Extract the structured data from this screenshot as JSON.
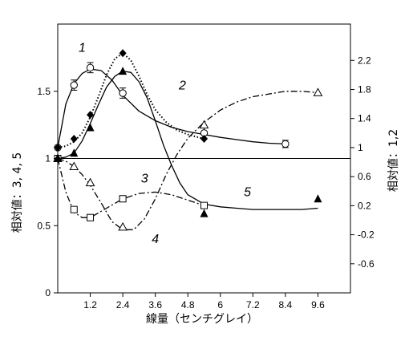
{
  "chart_data": {
    "type": "line",
    "title": "",
    "xlabel": "線量（センチグレイ）",
    "ylabel_left": "相対値：3, 4, 5",
    "ylabel_right": "相対値：1,2",
    "xlim": [
      0,
      10.8
    ],
    "ylim_left": [
      0,
      2
    ],
    "ylim_right": [
      -1,
      2.7
    ],
    "x_ticks": [
      1.2,
      2.4,
      3.6,
      4.8,
      6,
      7.2,
      8.4,
      9.6
    ],
    "x_tick_labels": [
      "1.2",
      "2.4",
      "3.6",
      "4.8",
      "6",
      "7.2",
      "8.4",
      "9.6"
    ],
    "left_ticks": [
      0,
      0.5,
      1,
      1.5
    ],
    "left_tick_labels": [
      "0",
      "0.5",
      "1",
      "1.5"
    ],
    "right_ticks": [
      -0.6,
      -0.2,
      0.2,
      0.6,
      1,
      1.4,
      1.8,
      2.2
    ],
    "right_tick_labels": [
      "-0.6",
      "-0.2",
      "0.2",
      "0.6",
      "1",
      "1.4",
      "1.8",
      "2.2"
    ],
    "reference_line_left_value": 1,
    "grid": false,
    "legend": "none",
    "series": [
      {
        "label": "1",
        "axis": "right",
        "marker": "circle",
        "line": "solid",
        "x": [
          0,
          0.6,
          1.2,
          2.4,
          5.4,
          8.4
        ],
        "y": [
          1.0,
          1.86,
          2.1,
          1.75,
          1.2,
          1.05
        ],
        "err": [
          0,
          0.07,
          0.07,
          0.07,
          0.07,
          0.05
        ],
        "curve_x": [
          0,
          0.3,
          0.6,
          0.9,
          1.2,
          1.6,
          2.0,
          2.4,
          3.0,
          3.6,
          4.2,
          4.8,
          5.4,
          6.0,
          6.6,
          7.2,
          7.8,
          8.4
        ],
        "curve_y": [
          1.0,
          1.6,
          1.88,
          2.02,
          2.08,
          2.06,
          1.93,
          1.72,
          1.5,
          1.37,
          1.28,
          1.22,
          1.18,
          1.14,
          1.11,
          1.08,
          1.06,
          1.05
        ]
      },
      {
        "label": "2",
        "axis": "right",
        "marker": "diamond",
        "line": "dotted",
        "x": [
          0,
          0.6,
          1.2,
          2.4,
          5.4
        ],
        "y": [
          1.0,
          1.12,
          1.45,
          2.3,
          1.12
        ],
        "err": [
          0,
          0,
          0,
          0,
          0
        ],
        "curve_x": [
          0,
          0.3,
          0.6,
          0.9,
          1.2,
          1.5,
          1.8,
          2.1,
          2.4,
          2.7,
          3.0,
          3.3,
          3.6,
          4.0,
          4.4,
          4.8,
          5.4
        ],
        "curve_y": [
          1.0,
          1.02,
          1.08,
          1.2,
          1.42,
          1.7,
          2.0,
          2.22,
          2.3,
          2.2,
          1.98,
          1.73,
          1.52,
          1.35,
          1.24,
          1.18,
          1.12
        ]
      },
      {
        "label": "3",
        "axis": "left",
        "marker": "square",
        "line": "dashdot",
        "x": [
          0,
          0.6,
          1.2,
          2.4,
          5.4
        ],
        "y": [
          1.0,
          0.62,
          0.56,
          0.7,
          0.65
        ],
        "err": [
          0,
          0,
          0,
          0,
          0
        ],
        "curve_x": [
          0,
          0.3,
          0.6,
          0.9,
          1.2,
          1.8,
          2.4,
          3.0,
          3.6,
          4.2,
          4.8,
          5.4
        ],
        "curve_y": [
          1.0,
          0.75,
          0.6,
          0.56,
          0.56,
          0.63,
          0.7,
          0.74,
          0.75,
          0.73,
          0.69,
          0.65
        ]
      },
      {
        "label": "4",
        "axis": "left",
        "marker": "triangle-open",
        "line": "dashdot",
        "x": [
          0,
          0.6,
          1.2,
          2.4,
          5.4,
          9.6
        ],
        "y": [
          1.0,
          0.94,
          0.82,
          0.49,
          1.25,
          1.49
        ],
        "err": [
          0,
          0,
          0,
          0,
          0,
          0
        ],
        "curve_x": [
          0,
          0.3,
          0.6,
          0.9,
          1.2,
          1.6,
          2.0,
          2.4,
          2.8,
          3.2,
          3.6,
          4.0,
          4.4,
          4.8,
          5.4,
          6.0,
          6.6,
          7.2,
          7.8,
          8.4,
          9.0,
          9.6
        ],
        "curve_y": [
          1.0,
          0.98,
          0.94,
          0.88,
          0.8,
          0.67,
          0.53,
          0.47,
          0.47,
          0.55,
          0.7,
          0.88,
          1.03,
          1.15,
          1.27,
          1.36,
          1.42,
          1.46,
          1.48,
          1.5,
          1.5,
          1.49
        ]
      },
      {
        "label": "5",
        "axis": "left",
        "marker": "triangle-filled",
        "line": "solid",
        "x": [
          0,
          0.6,
          1.2,
          2.4,
          5.4,
          9.6
        ],
        "y": [
          1.0,
          1.04,
          1.23,
          1.65,
          0.59,
          0.7
        ],
        "err": [
          0,
          0,
          0,
          0,
          0,
          0
        ],
        "curve_x": [
          0,
          0.3,
          0.6,
          0.9,
          1.2,
          1.5,
          1.8,
          2.1,
          2.4,
          2.7,
          3.0,
          3.3,
          3.6,
          3.9,
          4.2,
          4.5,
          4.8,
          5.4,
          6.0,
          6.6,
          7.2,
          7.8,
          8.4,
          9.0,
          9.6
        ],
        "curve_y": [
          1.0,
          1.01,
          1.04,
          1.13,
          1.26,
          1.4,
          1.53,
          1.61,
          1.65,
          1.64,
          1.57,
          1.45,
          1.28,
          1.1,
          0.95,
          0.82,
          0.73,
          0.66,
          0.64,
          0.63,
          0.62,
          0.62,
          0.62,
          0.62,
          0.63
        ]
      }
    ],
    "curve_labels": [
      {
        "text": "1",
        "series": 0,
        "x": 0.9,
        "axis": "right",
        "y": 2.32
      },
      {
        "text": "2",
        "series": 1,
        "x": 4.6,
        "axis": "right",
        "y": 1.8
      },
      {
        "text": "3",
        "series": 2,
        "x": 3.2,
        "axis": "left",
        "y": 0.82
      },
      {
        "text": "4",
        "series": 3,
        "x": 3.6,
        "axis": "left",
        "y": 0.37
      },
      {
        "text": "5",
        "series": 4,
        "x": 7.0,
        "axis": "left",
        "y": 0.72
      }
    ]
  }
}
